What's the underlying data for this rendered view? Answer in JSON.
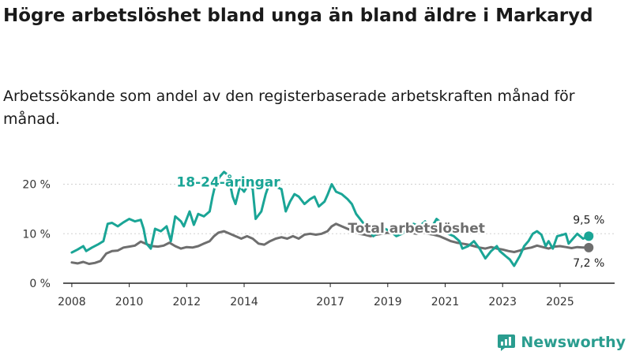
{
  "title": "Högre arbetslöshet bland unga än bland äldre i Markaryd",
  "subtitle": "Arbetssökande som andel av den registerbaserade arbetskraften månad för månad.",
  "brand": "Newsworthy",
  "colors": {
    "youth": "#1aa596",
    "total": "#6e6e6e",
    "axis": "#222222",
    "grid": "#d0d0d0"
  },
  "chart_data": {
    "type": "line",
    "title": "Högre arbetslöshet bland unga än bland äldre i Markaryd",
    "xlabel": "",
    "ylabel": "",
    "xlim": [
      2007.7,
      2026.9
    ],
    "ylim": [
      0,
      22
    ],
    "y_ticks": [
      {
        "value": 0,
        "label": "0 %"
      },
      {
        "value": 10,
        "label": "10 %"
      },
      {
        "value": 20,
        "label": "20 %"
      }
    ],
    "x_ticks": [
      {
        "value": 2008,
        "label": "2008"
      },
      {
        "value": 2010,
        "label": "2010"
      },
      {
        "value": 2012,
        "label": "2012"
      },
      {
        "value": 2014,
        "label": "2014"
      },
      {
        "value": 2017,
        "label": "2017"
      },
      {
        "value": 2019,
        "label": "2019"
      },
      {
        "value": 2021,
        "label": "2021"
      },
      {
        "value": 2023,
        "label": "2023"
      },
      {
        "value": 2025,
        "label": "2025"
      }
    ],
    "grid": true,
    "series": [
      {
        "name": "18-24-åringar",
        "label": "18-24-åringar",
        "end_label": "9,5 %",
        "points": [
          [
            2008.0,
            6.2
          ],
          [
            2008.2,
            6.8
          ],
          [
            2008.4,
            7.5
          ],
          [
            2008.5,
            6.5
          ],
          [
            2008.7,
            7.2
          ],
          [
            2008.9,
            7.8
          ],
          [
            2009.1,
            8.5
          ],
          [
            2009.25,
            12.0
          ],
          [
            2009.4,
            12.2
          ],
          [
            2009.6,
            11.5
          ],
          [
            2009.8,
            12.3
          ],
          [
            2010.0,
            13.0
          ],
          [
            2010.2,
            12.5
          ],
          [
            2010.4,
            12.8
          ],
          [
            2010.5,
            11.0
          ],
          [
            2010.6,
            8.0
          ],
          [
            2010.75,
            7.0
          ],
          [
            2010.9,
            11.0
          ],
          [
            2011.1,
            10.5
          ],
          [
            2011.3,
            11.5
          ],
          [
            2011.45,
            8.5
          ],
          [
            2011.6,
            13.5
          ],
          [
            2011.8,
            12.5
          ],
          [
            2011.9,
            11.5
          ],
          [
            2012.1,
            14.5
          ],
          [
            2012.25,
            11.8
          ],
          [
            2012.4,
            14.0
          ],
          [
            2012.6,
            13.5
          ],
          [
            2012.8,
            14.5
          ],
          [
            2012.9,
            17.5
          ],
          [
            2013.0,
            20.0
          ],
          [
            2013.15,
            21.5
          ],
          [
            2013.3,
            22.5
          ],
          [
            2013.45,
            21.8
          ],
          [
            2013.6,
            17.5
          ],
          [
            2013.7,
            16.0
          ],
          [
            2013.85,
            19.5
          ],
          [
            2014.0,
            18.5
          ],
          [
            2014.15,
            20.0
          ],
          [
            2014.3,
            19.0
          ],
          [
            2014.4,
            13.0
          ],
          [
            2014.6,
            14.5
          ],
          [
            2014.75,
            18.0
          ],
          [
            2014.9,
            20.5
          ],
          [
            2015.1,
            19.5
          ],
          [
            2015.3,
            19.0
          ],
          [
            2015.45,
            14.5
          ],
          [
            2015.6,
            16.5
          ],
          [
            2015.75,
            18.0
          ],
          [
            2015.9,
            17.5
          ],
          [
            2016.1,
            16.0
          ],
          [
            2016.3,
            17.0
          ],
          [
            2016.45,
            17.5
          ],
          [
            2016.6,
            15.5
          ],
          [
            2016.8,
            16.5
          ],
          [
            2016.9,
            17.8
          ],
          [
            2017.05,
            20.0
          ],
          [
            2017.2,
            18.5
          ],
          [
            2017.4,
            18.0
          ],
          [
            2017.6,
            17.0
          ],
          [
            2017.75,
            16.0
          ],
          [
            2017.9,
            14.0
          ],
          [
            2018.1,
            12.5
          ],
          [
            2018.3,
            11.0
          ],
          [
            2018.5,
            9.5
          ],
          [
            2018.7,
            10.5
          ],
          [
            2018.9,
            11.0
          ],
          [
            2019.1,
            10.5
          ],
          [
            2019.3,
            9.5
          ],
          [
            2019.5,
            10.0
          ],
          [
            2019.7,
            11.0
          ],
          [
            2019.9,
            12.0
          ],
          [
            2020.1,
            11.5
          ],
          [
            2020.3,
            12.5
          ],
          [
            2020.5,
            11.0
          ],
          [
            2020.7,
            13.0
          ],
          [
            2020.9,
            12.0
          ],
          [
            2021.1,
            10.0
          ],
          [
            2021.3,
            9.5
          ],
          [
            2021.5,
            8.5
          ],
          [
            2021.6,
            7.0
          ],
          [
            2021.8,
            7.5
          ],
          [
            2022.0,
            8.5
          ],
          [
            2022.2,
            7.0
          ],
          [
            2022.4,
            5.0
          ],
          [
            2022.6,
            6.5
          ],
          [
            2022.8,
            7.5
          ],
          [
            2022.9,
            6.5
          ],
          [
            2023.1,
            5.5
          ],
          [
            2023.25,
            4.8
          ],
          [
            2023.4,
            3.5
          ],
          [
            2023.6,
            5.5
          ],
          [
            2023.75,
            7.5
          ],
          [
            2023.9,
            8.5
          ],
          [
            2024.05,
            10.0
          ],
          [
            2024.2,
            10.5
          ],
          [
            2024.35,
            9.8
          ],
          [
            2024.5,
            7.5
          ],
          [
            2024.6,
            8.5
          ],
          [
            2024.75,
            7.0
          ],
          [
            2024.9,
            9.5
          ],
          [
            2025.1,
            9.8
          ],
          [
            2025.2,
            10.0
          ],
          [
            2025.3,
            8.0
          ],
          [
            2025.45,
            9.0
          ],
          [
            2025.6,
            10.0
          ],
          [
            2025.8,
            9.0
          ],
          [
            2026.0,
            9.5
          ]
        ]
      },
      {
        "name": "Total arbetslöshet",
        "label": "Total arbetslöshet",
        "end_label": "7,2 %",
        "points": [
          [
            2008.0,
            4.2
          ],
          [
            2008.2,
            4.0
          ],
          [
            2008.4,
            4.3
          ],
          [
            2008.6,
            3.9
          ],
          [
            2008.8,
            4.1
          ],
          [
            2009.0,
            4.5
          ],
          [
            2009.2,
            6.0
          ],
          [
            2009.4,
            6.5
          ],
          [
            2009.6,
            6.6
          ],
          [
            2009.8,
            7.2
          ],
          [
            2010.0,
            7.4
          ],
          [
            2010.2,
            7.6
          ],
          [
            2010.4,
            8.4
          ],
          [
            2010.6,
            7.9
          ],
          [
            2010.8,
            7.5
          ],
          [
            2011.0,
            7.4
          ],
          [
            2011.2,
            7.6
          ],
          [
            2011.4,
            8.2
          ],
          [
            2011.6,
            7.5
          ],
          [
            2011.8,
            7.0
          ],
          [
            2012.0,
            7.3
          ],
          [
            2012.2,
            7.2
          ],
          [
            2012.4,
            7.5
          ],
          [
            2012.6,
            8.0
          ],
          [
            2012.8,
            8.5
          ],
          [
            2012.95,
            9.5
          ],
          [
            2013.1,
            10.2
          ],
          [
            2013.3,
            10.5
          ],
          [
            2013.5,
            10.0
          ],
          [
            2013.7,
            9.5
          ],
          [
            2013.9,
            9.0
          ],
          [
            2014.1,
            9.5
          ],
          [
            2014.3,
            9.0
          ],
          [
            2014.5,
            8.0
          ],
          [
            2014.7,
            7.8
          ],
          [
            2014.9,
            8.5
          ],
          [
            2015.1,
            9.0
          ],
          [
            2015.3,
            9.3
          ],
          [
            2015.5,
            9.0
          ],
          [
            2015.7,
            9.5
          ],
          [
            2015.9,
            9.0
          ],
          [
            2016.1,
            9.8
          ],
          [
            2016.3,
            10.0
          ],
          [
            2016.5,
            9.8
          ],
          [
            2016.7,
            10.0
          ],
          [
            2016.9,
            10.5
          ],
          [
            2017.05,
            11.5
          ],
          [
            2017.2,
            12.0
          ],
          [
            2017.4,
            11.5
          ],
          [
            2017.6,
            11.0
          ],
          [
            2017.8,
            10.5
          ],
          [
            2018.0,
            10.0
          ],
          [
            2018.2,
            9.8
          ],
          [
            2018.4,
            9.5
          ],
          [
            2018.6,
            9.8
          ],
          [
            2018.8,
            10.0
          ],
          [
            2019.0,
            10.2
          ],
          [
            2019.2,
            10.0
          ],
          [
            2019.4,
            10.2
          ],
          [
            2019.6,
            10.4
          ],
          [
            2019.8,
            10.2
          ],
          [
            2020.0,
            10.0
          ],
          [
            2020.2,
            10.3
          ],
          [
            2020.4,
            10.0
          ],
          [
            2020.6,
            9.8
          ],
          [
            2020.8,
            9.5
          ],
          [
            2021.0,
            9.0
          ],
          [
            2021.2,
            8.5
          ],
          [
            2021.4,
            8.2
          ],
          [
            2021.6,
            8.0
          ],
          [
            2021.8,
            7.8
          ],
          [
            2022.0,
            7.5
          ],
          [
            2022.2,
            7.2
          ],
          [
            2022.4,
            7.0
          ],
          [
            2022.6,
            7.3
          ],
          [
            2022.8,
            7.0
          ],
          [
            2023.0,
            6.8
          ],
          [
            2023.2,
            6.5
          ],
          [
            2023.4,
            6.3
          ],
          [
            2023.6,
            6.6
          ],
          [
            2023.8,
            7.0
          ],
          [
            2024.0,
            7.2
          ],
          [
            2024.2,
            7.6
          ],
          [
            2024.4,
            7.3
          ],
          [
            2024.6,
            7.0
          ],
          [
            2024.8,
            7.4
          ],
          [
            2025.0,
            7.5
          ],
          [
            2025.2,
            7.3
          ],
          [
            2025.4,
            7.1
          ],
          [
            2025.6,
            7.3
          ],
          [
            2025.8,
            7.2
          ],
          [
            2026.0,
            7.2
          ]
        ]
      }
    ],
    "annotations": [
      {
        "series": "18-24-åringar",
        "text": "18-24-åringar",
        "x": 2013.45,
        "y": 19.5
      },
      {
        "series": "Total arbetslöshet",
        "text": "Total arbetslöshet",
        "x": 2020.0,
        "y": 10.2
      }
    ]
  }
}
